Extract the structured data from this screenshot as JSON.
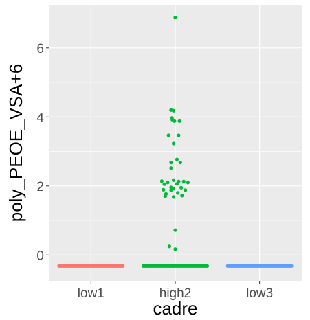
{
  "chart_data": {
    "type": "scatter",
    "subtype": "beeswarm",
    "xlabel": "cadre",
    "ylabel": "poly_PEOE_VSA+6",
    "categories": [
      "low1",
      "high2",
      "low3"
    ],
    "ylim": [
      -0.75,
      7.25
    ],
    "yticks": [
      0,
      2,
      4,
      6
    ],
    "grid": true,
    "legend": "none",
    "colors": {
      "low1": "#F8766D",
      "high2": "#00BA38",
      "low3": "#619CFF",
      "panel_background": "#EBEBEB",
      "grid": "#FFFFFF"
    },
    "series": [
      {
        "category": "low1",
        "baseline_value": -0.32,
        "points": []
      },
      {
        "category": "high2",
        "baseline_value": -0.32,
        "points": [
          {
            "offset": 0.0,
            "y": 6.88
          },
          {
            "offset": -0.05,
            "y": 4.2
          },
          {
            "offset": -0.02,
            "y": 4.18
          },
          {
            "offset": -0.04,
            "y": 3.97
          },
          {
            "offset": -0.035,
            "y": 3.92
          },
          {
            "offset": -0.01,
            "y": 3.88
          },
          {
            "offset": 0.05,
            "y": 3.88
          },
          {
            "offset": -0.08,
            "y": 3.47
          },
          {
            "offset": 0.04,
            "y": 3.47
          },
          {
            "offset": -0.02,
            "y": 3.23
          },
          {
            "offset": 0.02,
            "y": 2.77
          },
          {
            "offset": -0.05,
            "y": 2.68
          },
          {
            "offset": 0.06,
            "y": 2.68
          },
          {
            "offset": -0.05,
            "y": 2.52
          },
          {
            "offset": -0.16,
            "y": 2.14
          },
          {
            "offset": -0.09,
            "y": 2.1
          },
          {
            "offset": -0.02,
            "y": 2.17
          },
          {
            "offset": 0.04,
            "y": 2.13
          },
          {
            "offset": 0.1,
            "y": 2.13
          },
          {
            "offset": 0.15,
            "y": 2.1
          },
          {
            "offset": -0.13,
            "y": 2.05
          },
          {
            "offset": -0.05,
            "y": 1.96
          },
          {
            "offset": 0.02,
            "y": 2.06
          },
          {
            "offset": -0.02,
            "y": 1.92
          },
          {
            "offset": 0.07,
            "y": 1.95
          },
          {
            "offset": -0.14,
            "y": 1.89
          },
          {
            "offset": -0.05,
            "y": 1.88
          },
          {
            "offset": 0.12,
            "y": 1.88
          },
          {
            "offset": -0.11,
            "y": 1.77
          },
          {
            "offset": 0.03,
            "y": 1.8
          },
          {
            "offset": -0.12,
            "y": 1.7
          },
          {
            "offset": -0.02,
            "y": 1.68
          },
          {
            "offset": 0.08,
            "y": 1.72
          },
          {
            "offset": 0.0,
            "y": 0.72
          },
          {
            "offset": -0.07,
            "y": 0.25
          },
          {
            "offset": 0.0,
            "y": 0.17
          }
        ]
      },
      {
        "category": "low3",
        "baseline_value": -0.32,
        "points": []
      }
    ]
  }
}
